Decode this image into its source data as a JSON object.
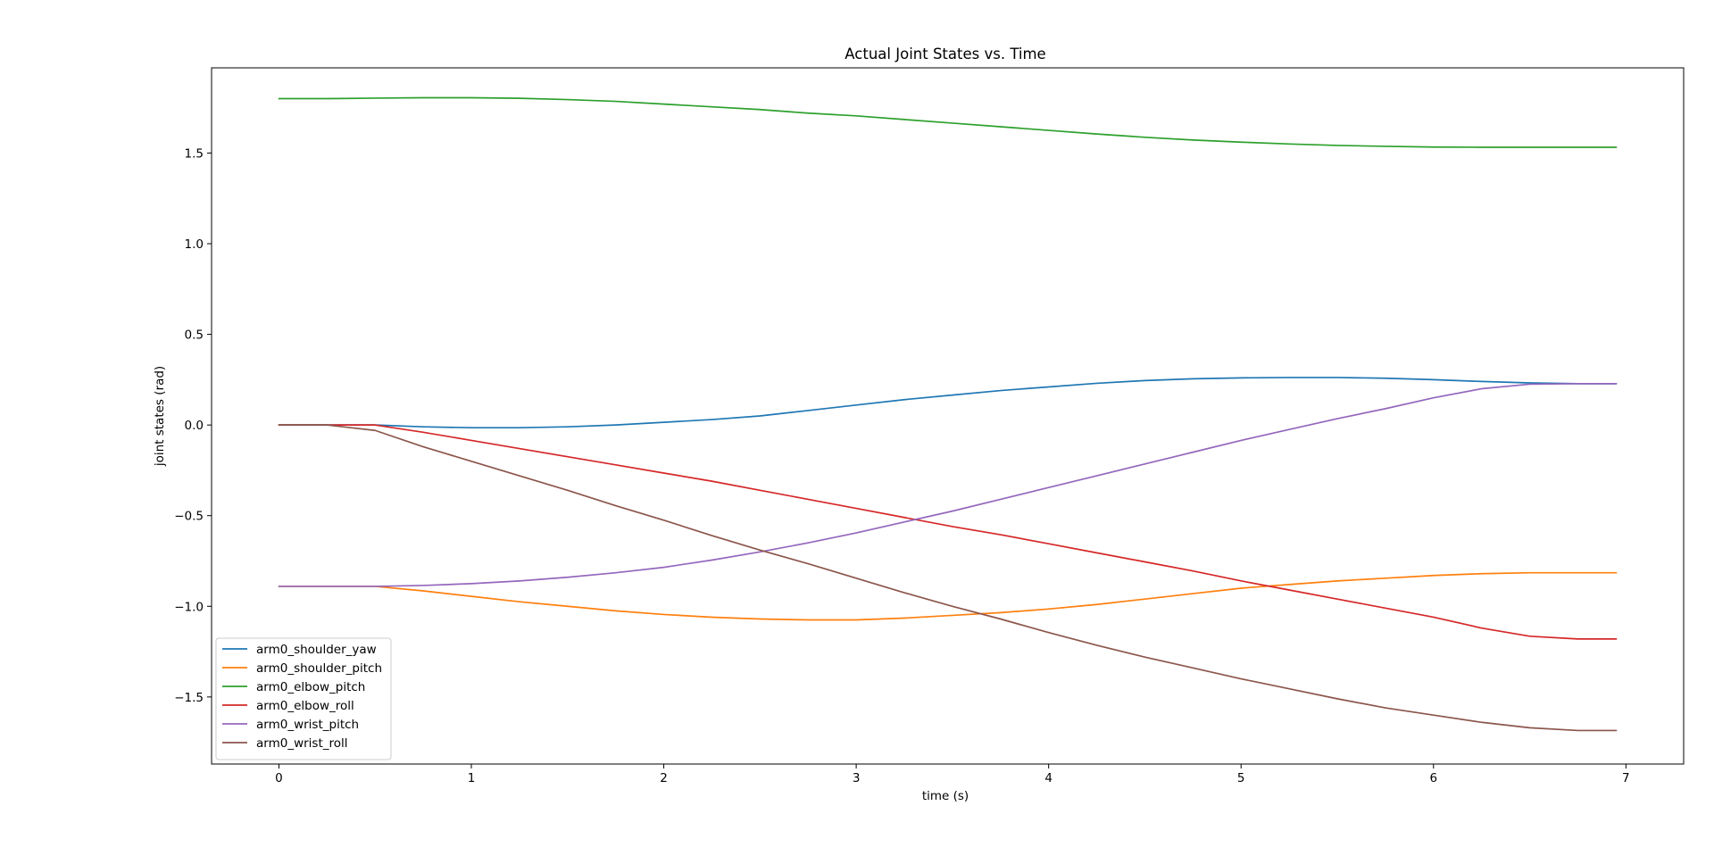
{
  "chart_data": {
    "type": "line",
    "title": "Actual Joint States vs. Time",
    "xlabel": "time (s)",
    "ylabel": "joint states (rad)",
    "xlim": [
      -0.35,
      7.3
    ],
    "ylim": [
      -1.87,
      1.97
    ],
    "xticks": [
      0,
      1,
      2,
      3,
      4,
      5,
      6,
      7
    ],
    "xtick_labels": [
      "0",
      "1",
      "2",
      "3",
      "4",
      "5",
      "6",
      "7"
    ],
    "yticks": [
      -1.5,
      -1.0,
      -0.5,
      0.0,
      0.5,
      1.0,
      1.5
    ],
    "ytick_labels": [
      "−1.5",
      "−1.0",
      "−0.5",
      "0.0",
      "0.5",
      "1.0",
      "1.5"
    ],
    "grid": false,
    "legend_position": "lower-left",
    "x": [
      0,
      0.25,
      0.5,
      0.75,
      1.0,
      1.25,
      1.5,
      1.75,
      2.0,
      2.25,
      2.5,
      2.75,
      3.0,
      3.25,
      3.5,
      3.75,
      4.0,
      4.25,
      4.5,
      4.75,
      5.0,
      5.25,
      5.5,
      5.75,
      6.0,
      6.25,
      6.5,
      6.75,
      6.95
    ],
    "series": [
      {
        "name": "arm0_shoulder_yaw",
        "color": "#1f77b4",
        "values": [
          0.0,
          0.0,
          0.0,
          -0.01,
          -0.015,
          -0.015,
          -0.01,
          0.0,
          0.015,
          0.03,
          0.05,
          0.08,
          0.11,
          0.14,
          0.165,
          0.19,
          0.21,
          0.23,
          0.245,
          0.255,
          0.26,
          0.262,
          0.262,
          0.258,
          0.25,
          0.24,
          0.232,
          0.228,
          0.228
        ]
      },
      {
        "name": "arm0_shoulder_pitch",
        "color": "#ff7f0e",
        "values": [
          -0.89,
          -0.89,
          -0.89,
          -0.915,
          -0.945,
          -0.975,
          -1.0,
          -1.025,
          -1.045,
          -1.06,
          -1.07,
          -1.075,
          -1.075,
          -1.065,
          -1.05,
          -1.035,
          -1.015,
          -0.99,
          -0.96,
          -0.93,
          -0.9,
          -0.88,
          -0.86,
          -0.845,
          -0.83,
          -0.82,
          -0.815,
          -0.815,
          -0.815
        ]
      },
      {
        "name": "arm0_elbow_pitch",
        "color": "#2ca02c",
        "values": [
          1.8,
          1.8,
          1.803,
          1.805,
          1.805,
          1.802,
          1.795,
          1.785,
          1.77,
          1.755,
          1.74,
          1.72,
          1.705,
          1.685,
          1.665,
          1.645,
          1.625,
          1.605,
          1.587,
          1.572,
          1.56,
          1.55,
          1.542,
          1.537,
          1.533,
          1.532,
          1.532,
          1.532,
          1.532
        ]
      },
      {
        "name": "arm0_elbow_roll",
        "color": "#d62728",
        "values": [
          0.0,
          0.0,
          0.0,
          -0.04,
          -0.085,
          -0.13,
          -0.175,
          -0.22,
          -0.265,
          -0.31,
          -0.36,
          -0.41,
          -0.46,
          -0.51,
          -0.56,
          -0.605,
          -0.655,
          -0.705,
          -0.755,
          -0.805,
          -0.86,
          -0.91,
          -0.96,
          -1.01,
          -1.06,
          -1.12,
          -1.165,
          -1.18,
          -1.18
        ]
      },
      {
        "name": "arm0_wrist_pitch",
        "color": "#9467bd",
        "values": [
          -0.89,
          -0.89,
          -0.89,
          -0.885,
          -0.875,
          -0.86,
          -0.84,
          -0.815,
          -0.785,
          -0.745,
          -0.7,
          -0.65,
          -0.595,
          -0.535,
          -0.475,
          -0.41,
          -0.345,
          -0.28,
          -0.215,
          -0.15,
          -0.085,
          -0.025,
          0.035,
          0.09,
          0.15,
          0.2,
          0.225,
          0.228,
          0.228
        ]
      },
      {
        "name": "arm0_wrist_roll",
        "color": "#8c564b",
        "values": [
          0.0,
          0.0,
          -0.03,
          -0.12,
          -0.2,
          -0.28,
          -0.36,
          -0.445,
          -0.525,
          -0.61,
          -0.69,
          -0.765,
          -0.845,
          -0.925,
          -1.0,
          -1.07,
          -1.145,
          -1.215,
          -1.28,
          -1.34,
          -1.4,
          -1.455,
          -1.51,
          -1.56,
          -1.6,
          -1.64,
          -1.67,
          -1.685,
          -1.685
        ]
      }
    ]
  }
}
